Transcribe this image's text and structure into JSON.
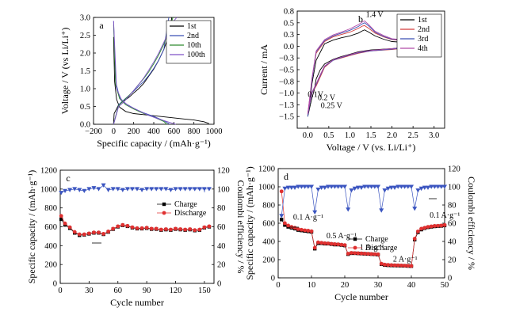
{
  "figure": {
    "panels": [
      "a",
      "b",
      "c",
      "d"
    ]
  },
  "chart_data": [
    {
      "panel_label": "a",
      "type": "line",
      "xlabel": "Specific capacity / (mAh·g⁻¹)",
      "ylabel": "Voltage / V (vs Li/Li⁺)",
      "xlim": [
        -200,
        1000
      ],
      "ylim": [
        0,
        3.0
      ],
      "xticks": [
        -200,
        0,
        200,
        400,
        600,
        800,
        1000
      ],
      "yticks": [
        0.0,
        0.5,
        1.0,
        1.5,
        2.0,
        2.5,
        3.0
      ],
      "legend": {
        "position": "top-right",
        "entries": [
          "1st",
          "2nd",
          "10th",
          "100th"
        ]
      },
      "series": [
        {
          "name": "1st",
          "color": "#000000",
          "x": [
            0,
            10,
            30,
            60,
            120,
            200,
            300,
            400,
            500,
            600,
            700,
            800,
            900,
            950
          ],
          "y": [
            2.45,
            1.2,
            0.7,
            0.48,
            0.36,
            0.3,
            0.27,
            0.24,
            0.21,
            0.18,
            0.15,
            0.12,
            0.07,
            0.02
          ]
        },
        {
          "name": "1st",
          "color": "#000000",
          "x": [
            0,
            5,
            50,
            100,
            150,
            200,
            250,
            300,
            350,
            400,
            450,
            500,
            550,
            580
          ],
          "y": [
            0.0,
            0.3,
            0.55,
            0.65,
            0.75,
            0.88,
            1.0,
            1.15,
            1.35,
            1.55,
            1.8,
            2.1,
            2.5,
            3.0
          ]
        },
        {
          "name": "2nd",
          "color": "#3b4fb4",
          "x": [
            0,
            20,
            60,
            120,
            200,
            300,
            400,
            500,
            560
          ],
          "y": [
            2.9,
            1.2,
            0.75,
            0.58,
            0.45,
            0.32,
            0.22,
            0.1,
            0.0
          ]
        },
        {
          "name": "2nd",
          "color": "#3b4fb4",
          "x": [
            0,
            50,
            100,
            150,
            200,
            250,
            300,
            350,
            400,
            450,
            500,
            550
          ],
          "y": [
            0.0,
            0.55,
            0.68,
            0.8,
            0.93,
            1.07,
            1.2,
            1.37,
            1.57,
            1.8,
            2.1,
            3.0
          ]
        },
        {
          "name": "10th",
          "color": "#2e8b2e",
          "x": [
            0,
            20,
            60,
            120,
            200,
            300,
            400,
            500,
            530
          ],
          "y": [
            2.8,
            1.1,
            0.72,
            0.55,
            0.43,
            0.3,
            0.2,
            0.08,
            0.0
          ]
        },
        {
          "name": "10th",
          "color": "#2e8b2e",
          "x": [
            0,
            50,
            100,
            150,
            200,
            250,
            300,
            350,
            400,
            450,
            500,
            560,
            590
          ],
          "y": [
            0.0,
            0.53,
            0.66,
            0.8,
            0.95,
            1.12,
            1.28,
            1.47,
            1.7,
            1.95,
            2.25,
            2.7,
            3.0
          ]
        },
        {
          "name": "100th",
          "color": "#7f52c8",
          "x": [
            0,
            30,
            80,
            150,
            250,
            350,
            450,
            550,
            620
          ],
          "y": [
            2.9,
            1.0,
            0.68,
            0.52,
            0.38,
            0.25,
            0.15,
            0.06,
            0.0
          ]
        },
        {
          "name": "100th",
          "color": "#7f52c8",
          "x": [
            0,
            50,
            100,
            150,
            200,
            250,
            300,
            350,
            400,
            450,
            500,
            550,
            600,
            630
          ],
          "y": [
            0.0,
            0.5,
            0.62,
            0.78,
            0.95,
            1.12,
            1.3,
            1.52,
            1.75,
            2.0,
            2.3,
            2.6,
            2.9,
            3.0
          ]
        }
      ]
    },
    {
      "panel_label": "b",
      "type": "line",
      "xlabel": "Voltage / V  (vs. Li/Li⁺)",
      "ylabel": "Current / mA",
      "xlim": [
        -0.25,
        3.25
      ],
      "ylim": [
        -1.75,
        0.75
      ],
      "xticks": [
        0.0,
        0.5,
        1.0,
        1.5,
        2.0,
        2.5,
        3.0
      ],
      "yticks": [
        -1.5,
        -1.25,
        -1.0,
        -0.75,
        -0.5,
        -0.25,
        0.0,
        0.25,
        0.5,
        0.75
      ],
      "legend": {
        "position": "top-right",
        "entries": [
          "1st",
          "2nd",
          "3rd",
          "4th"
        ]
      },
      "annotations": [
        {
          "text": "1.4 V",
          "x": 1.38,
          "y": 0.62
        },
        {
          "text": "0.1V",
          "x": 0.0,
          "y": -1.08
        },
        {
          "text": "0.2 V",
          "x": 0.24,
          "y": -1.15
        },
        {
          "text": "0.25 V",
          "x": 0.31,
          "y": -1.32
        }
      ],
      "series": [
        {
          "name": "1st",
          "color": "#000000",
          "x": [
            3.0,
            2.5,
            2.0,
            1.5,
            1.2,
            1.0,
            0.8,
            0.6,
            0.4,
            0.3,
            0.2,
            0.15,
            0.1,
            0.05,
            0.0,
            0.05,
            0.1,
            0.2,
            0.4,
            0.6,
            0.8,
            1.0,
            1.2,
            1.3,
            1.35,
            1.45,
            1.6,
            1.8,
            2.0,
            2.5,
            3.0
          ],
          "y": [
            0.04,
            0.0,
            -0.05,
            -0.08,
            -0.12,
            -0.17,
            -0.22,
            -0.28,
            -0.38,
            -0.5,
            -0.7,
            -0.95,
            -1.1,
            -1.3,
            -1.5,
            -1.2,
            -0.8,
            -0.3,
            0.05,
            0.13,
            0.18,
            0.22,
            0.28,
            0.33,
            0.35,
            0.3,
            0.22,
            0.15,
            0.1,
            0.07,
            0.05
          ]
        },
        {
          "name": "2nd",
          "color": "#d43a3a",
          "x": [
            3.0,
            2.5,
            2.0,
            1.5,
            1.2,
            1.0,
            0.8,
            0.6,
            0.4,
            0.3,
            0.2,
            0.1,
            0.05,
            0.0,
            0.05,
            0.1,
            0.2,
            0.4,
            0.6,
            0.8,
            1.0,
            1.2,
            1.3,
            1.35,
            1.45,
            1.6,
            1.8,
            2.0,
            2.5,
            3.0
          ],
          "y": [
            0.04,
            -0.02,
            -0.07,
            -0.1,
            -0.15,
            -0.2,
            -0.25,
            -0.3,
            -0.45,
            -0.65,
            -0.85,
            -1.0,
            -1.2,
            -1.45,
            -1.1,
            -0.7,
            -0.15,
            0.1,
            0.2,
            0.25,
            0.3,
            0.38,
            0.43,
            0.44,
            0.38,
            0.28,
            0.2,
            0.14,
            0.1,
            0.08
          ]
        },
        {
          "name": "3rd",
          "color": "#3b4fb4",
          "x": [
            3.0,
            2.5,
            2.0,
            1.5,
            1.2,
            1.0,
            0.8,
            0.6,
            0.4,
            0.3,
            0.2,
            0.1,
            0.05,
            0.0,
            0.05,
            0.1,
            0.2,
            0.4,
            0.6,
            0.8,
            1.0,
            1.2,
            1.3,
            1.35,
            1.45,
            1.6,
            1.8,
            2.0,
            2.5,
            3.0
          ],
          "y": [
            0.05,
            -0.02,
            -0.06,
            -0.1,
            -0.14,
            -0.19,
            -0.24,
            -0.3,
            -0.43,
            -0.62,
            -0.82,
            -1.0,
            -1.22,
            -1.5,
            -1.12,
            -0.72,
            -0.12,
            0.12,
            0.22,
            0.28,
            0.34,
            0.42,
            0.48,
            0.5,
            0.43,
            0.3,
            0.21,
            0.15,
            0.11,
            0.09
          ]
        },
        {
          "name": "4th",
          "color": "#b04aa8",
          "x": [
            3.0,
            2.5,
            2.0,
            1.5,
            1.2,
            1.0,
            0.8,
            0.6,
            0.4,
            0.3,
            0.2,
            0.1,
            0.05,
            0.0,
            0.05,
            0.1,
            0.2,
            0.4,
            0.6,
            0.8,
            1.0,
            1.2,
            1.3,
            1.35,
            1.45,
            1.6,
            1.8,
            2.0,
            2.5,
            3.0
          ],
          "y": [
            0.06,
            -0.01,
            -0.05,
            -0.09,
            -0.13,
            -0.18,
            -0.23,
            -0.29,
            -0.42,
            -0.6,
            -0.8,
            -0.98,
            -1.2,
            -1.45,
            -1.08,
            -0.68,
            -0.1,
            0.14,
            0.24,
            0.3,
            0.37,
            0.46,
            0.52,
            0.54,
            0.46,
            0.32,
            0.23,
            0.16,
            0.12,
            0.1
          ]
        }
      ]
    },
    {
      "panel_label": "c",
      "type": "scatter",
      "xlabel": "Cycle number",
      "ylabel": "Specific capacity / (mAh·g⁻¹)",
      "y2label": "Coulombi efficiency / %",
      "xlim": [
        0,
        160
      ],
      "ylim": [
        0,
        1200
      ],
      "y2lim": [
        0,
        120
      ],
      "xticks": [
        0,
        30,
        60,
        90,
        120,
        150
      ],
      "yticks": [
        0,
        200,
        400,
        600,
        800,
        1000,
        1200
      ],
      "y2ticks": [
        0,
        20,
        40,
        60,
        80,
        100,
        120
      ],
      "legend": {
        "position": "right-center",
        "entries": [
          "Charge",
          "Discharge"
        ]
      },
      "x": [
        1,
        5,
        10,
        15,
        20,
        25,
        30,
        35,
        40,
        45,
        50,
        55,
        60,
        65,
        70,
        75,
        80,
        85,
        90,
        95,
        100,
        105,
        110,
        115,
        120,
        125,
        130,
        135,
        140,
        145,
        150,
        155
      ],
      "series": [
        {
          "name": "Charge",
          "color": "#000000",
          "marker": "square",
          "axis": "left",
          "values": [
            680,
            620,
            585,
            535,
            510,
            515,
            525,
            535,
            535,
            520,
            545,
            575,
            600,
            615,
            605,
            590,
            580,
            580,
            585,
            575,
            575,
            565,
            570,
            565,
            575,
            570,
            565,
            570,
            560,
            565,
            590,
            600
          ]
        },
        {
          "name": "Discharge",
          "color": "#e03030",
          "marker": "circle",
          "axis": "left",
          "values": [
            715,
            635,
            595,
            545,
            520,
            520,
            530,
            540,
            540,
            525,
            550,
            580,
            605,
            620,
            610,
            595,
            585,
            585,
            590,
            580,
            580,
            570,
            575,
            570,
            580,
            575,
            570,
            575,
            565,
            570,
            595,
            605
          ]
        },
        {
          "name": "Coulombi efficiency",
          "color": "#3b55c0",
          "marker": "triangle-down",
          "axis": "right",
          "values": [
            96,
            98,
            99,
            100,
            99,
            98,
            100,
            101,
            100,
            104,
            99,
            100,
            100,
            99,
            100,
            100,
            100,
            99,
            100,
            100,
            100,
            100,
            100,
            99,
            100,
            100,
            100,
            100,
            100,
            100,
            100,
            100
          ]
        }
      ]
    },
    {
      "panel_label": "d",
      "type": "scatter",
      "xlabel": "Cycle number",
      "ylabel": "Specific capacity / (mAh·g⁻¹)",
      "y2label": "Coulombi efficiency / %",
      "xlim": [
        0,
        50
      ],
      "ylim": [
        0,
        1200
      ],
      "y2lim": [
        0,
        120
      ],
      "xticks": [
        0,
        10,
        20,
        30,
        40,
        50
      ],
      "yticks": [
        0,
        200,
        400,
        600,
        800,
        1000,
        1200
      ],
      "y2ticks": [
        0,
        20,
        40,
        60,
        80,
        100,
        120
      ],
      "legend": {
        "position": "center",
        "entries": [
          "Charge",
          "Discharge"
        ]
      },
      "annotations": [
        {
          "text": "0.1 A·g⁻¹",
          "x": 4.5,
          "y": 640
        },
        {
          "text": "0.5 A·g⁻¹",
          "x": 14.5,
          "y": 435
        },
        {
          "text": "1 A·g⁻¹",
          "x": 24.5,
          "y": 310
        },
        {
          "text": "2 A·g⁻¹",
          "x": 34.5,
          "y": 180
        },
        {
          "text": "0.1 A·g⁻¹",
          "x": 45.5,
          "y": 660
        }
      ],
      "x": [
        1,
        2,
        3,
        4,
        5,
        6,
        7,
        8,
        9,
        10,
        11,
        12,
        13,
        14,
        15,
        16,
        17,
        18,
        19,
        20,
        21,
        22,
        23,
        24,
        25,
        26,
        27,
        28,
        29,
        30,
        31,
        32,
        33,
        34,
        35,
        36,
        37,
        38,
        39,
        40,
        41,
        42,
        43,
        44,
        45,
        46,
        47,
        48,
        49,
        50
      ],
      "series": [
        {
          "name": "Charge",
          "color": "#000000",
          "marker": "square",
          "axis": "left",
          "values": [
            640,
            580,
            560,
            550,
            540,
            525,
            520,
            515,
            510,
            505,
            320,
            380,
            380,
            375,
            375,
            370,
            365,
            365,
            360,
            355,
            260,
            270,
            270,
            268,
            266,
            264,
            262,
            260,
            258,
            255,
            150,
            140,
            138,
            136,
            135,
            134,
            133,
            132,
            130,
            128,
            420,
            500,
            530,
            545,
            555,
            560,
            565,
            568,
            570,
            575
          ]
        },
        {
          "name": "Discharge",
          "color": "#e03030",
          "marker": "circle",
          "axis": "left",
          "values": [
            950,
            600,
            575,
            560,
            550,
            535,
            528,
            522,
            518,
            512,
            330,
            390,
            385,
            380,
            378,
            374,
            370,
            368,
            364,
            360,
            265,
            274,
            272,
            270,
            268,
            266,
            264,
            262,
            260,
            258,
            155,
            145,
            142,
            140,
            138,
            137,
            136,
            134,
            132,
            130,
            430,
            510,
            540,
            550,
            560,
            565,
            570,
            572,
            575,
            580
          ]
        },
        {
          "name": "Coulombi efficiency",
          "color": "#3b55c0",
          "marker": "triangle-down",
          "axis": "right",
          "values": [
            68,
            98,
            99,
            99,
            99,
            100,
            100,
            100,
            100,
            100,
            72,
            97,
            99,
            99,
            100,
            100,
            100,
            100,
            100,
            100,
            75,
            96,
            98,
            99,
            99,
            100,
            100,
            100,
            100,
            100,
            74,
            96,
            98,
            99,
            99,
            100,
            100,
            100,
            100,
            100,
            76,
            96,
            98,
            99,
            99,
            100,
            100,
            100,
            100,
            100
          ]
        }
      ]
    }
  ]
}
